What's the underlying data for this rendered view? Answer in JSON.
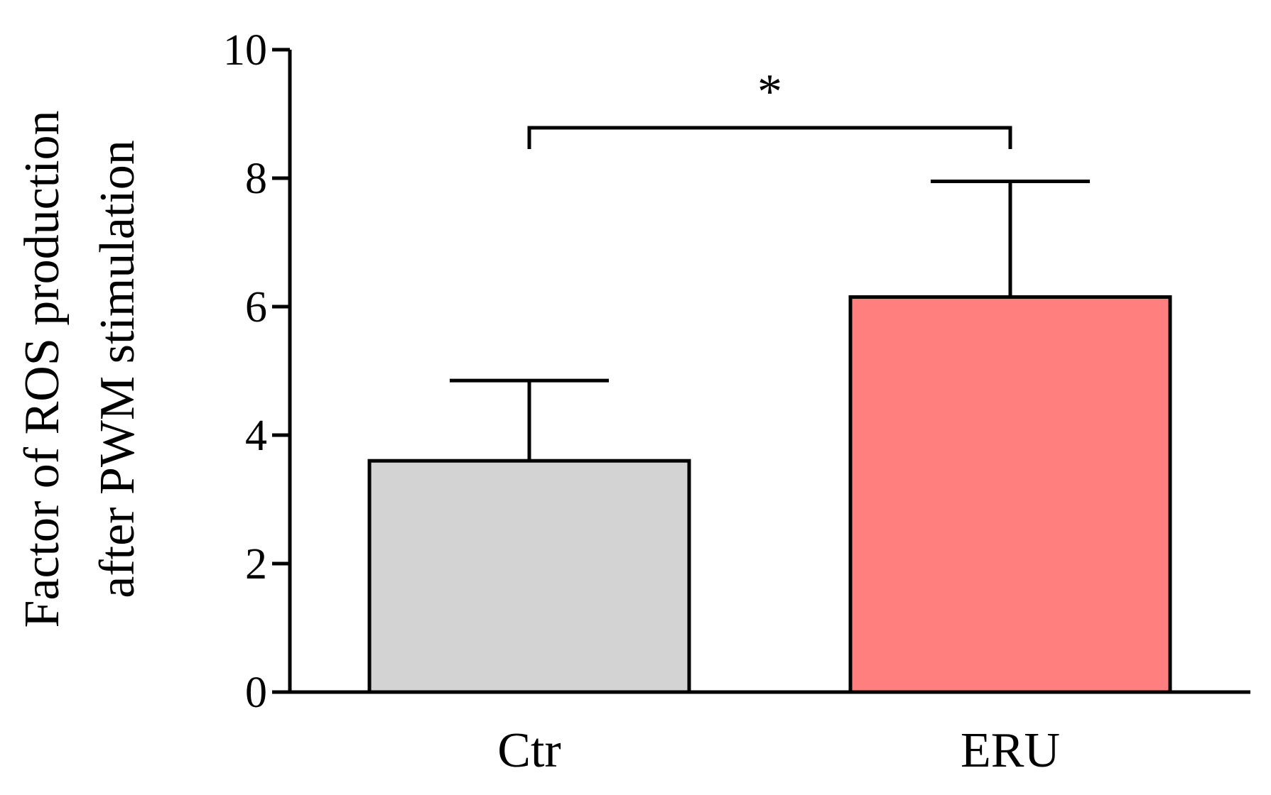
{
  "chart_data": {
    "type": "bar",
    "title": "",
    "ylabel": [
      "Factor of ROS production",
      "after PWM stimulation"
    ],
    "xlabel": "",
    "categories": [
      "Ctr",
      "ERU"
    ],
    "values": [
      3.6,
      6.15
    ],
    "error_upper": [
      4.85,
      7.95
    ],
    "bar_colors": [
      "#d3d3d3",
      "#ff7f7f"
    ],
    "ylim": [
      0,
      10
    ],
    "yticks": [
      0,
      2,
      4,
      6,
      8,
      10
    ],
    "ytick_labels": [
      "0",
      "2",
      "4",
      "6",
      "8",
      "10"
    ],
    "grid": false,
    "legend": "none",
    "significance": {
      "between": [
        "Ctr",
        "ERU"
      ],
      "label": "*"
    }
  }
}
